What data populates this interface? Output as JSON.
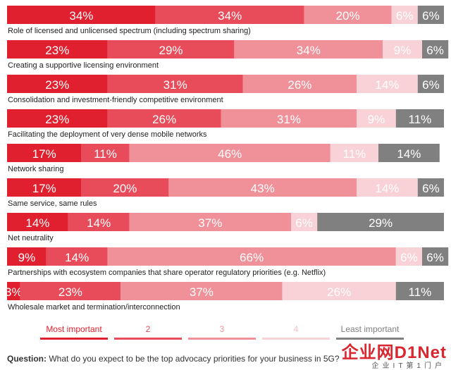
{
  "colors": {
    "c1": "#e0202e",
    "c2": "#e84c5a",
    "c3": "#f0919a",
    "c4": "#f8d2d6",
    "c5": "#808080"
  },
  "chart_data": {
    "type": "bar",
    "orientation": "horizontal",
    "stacked": true,
    "unit": "%",
    "xlim": [
      0,
      100
    ],
    "grid": false,
    "legend_position": "bottom",
    "categories": [
      "Role of licensed and unlicensed spectrum (including spectrum sharing)",
      "Creating a supportive licensing environment",
      "Consolidation and investment-friendly competitive environment",
      "Facilitating the deployment of very dense mobile networks",
      "Network sharing",
      "Same service, same rules",
      "Net neutrality",
      "Partnerships with ecosystem companies that share operator regulatory priorities (e.g. Netflix)",
      "Wholesale market and termination/interconnection"
    ],
    "series": [
      {
        "name": "Most important",
        "values": [
          34,
          23,
          23,
          23,
          17,
          17,
          14,
          9,
          3
        ]
      },
      {
        "name": "2",
        "values": [
          34,
          29,
          31,
          26,
          11,
          20,
          14,
          14,
          23
        ]
      },
      {
        "name": "3",
        "values": [
          20,
          34,
          26,
          31,
          46,
          43,
          37,
          66,
          37
        ]
      },
      {
        "name": "4",
        "values": [
          6,
          9,
          14,
          9,
          11,
          14,
          6,
          6,
          26
        ]
      },
      {
        "name": "Least important",
        "values": [
          6,
          6,
          6,
          11,
          14,
          6,
          29,
          6,
          11
        ]
      }
    ]
  },
  "footer": {
    "question_label": "Question:",
    "question_text": "What do you expect to be the top advocacy priorities for your business in 5G?"
  },
  "watermark": {
    "main": "企业网D1Net",
    "sub": "企业IT第1门户"
  }
}
